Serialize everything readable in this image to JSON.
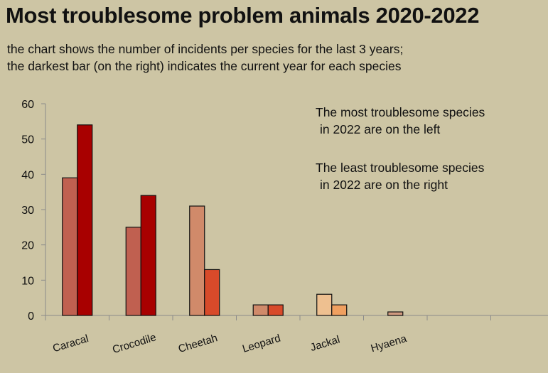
{
  "header": {
    "title": "Most troublesome problem animals 2020-2022",
    "subtitle_line1": "the chart shows the number of incidents per species for the last 3 years;",
    "subtitle_line2": "the darkest bar (on the right) indicates the current year for each species"
  },
  "annotations": {
    "most_line1": "The most troublesome species",
    "most_line2": "in 2022 are on the left",
    "least_line1": "The least troublesome species",
    "least_line2": "in 2022 are on the right"
  },
  "chart_data": {
    "type": "bar",
    "title": "Most troublesome problem animals 2020-2022",
    "xlabel": "",
    "ylabel": "",
    "ylim": [
      0,
      60
    ],
    "yticks": [
      0,
      10,
      20,
      30,
      40,
      50,
      60
    ],
    "grid": false,
    "categories": [
      "Caracal",
      "Crocodile",
      "Cheetah",
      "Leopard",
      "Jackal",
      "Hyaena"
    ],
    "bars": [
      {
        "category": "Caracal",
        "values": [
          39,
          54
        ],
        "colors": [
          "#c06050",
          "#a80000"
        ]
      },
      {
        "category": "Crocodile",
        "values": [
          25,
          34
        ],
        "colors": [
          "#c06050",
          "#a80000"
        ]
      },
      {
        "category": "Cheetah",
        "values": [
          31,
          13
        ],
        "colors": [
          "#d08a6a",
          "#d84a2a"
        ]
      },
      {
        "category": "Leopard",
        "values": [
          3,
          3
        ],
        "colors": [
          "#d08a6a",
          "#d84a2a"
        ]
      },
      {
        "category": "Jackal",
        "values": [
          6,
          3
        ],
        "colors": [
          "#eec090",
          "#f0a060"
        ]
      },
      {
        "category": "Hyaena",
        "values": [
          1
        ],
        "colors": [
          "#d09a80"
        ]
      }
    ],
    "empty_category_slots": 2
  }
}
